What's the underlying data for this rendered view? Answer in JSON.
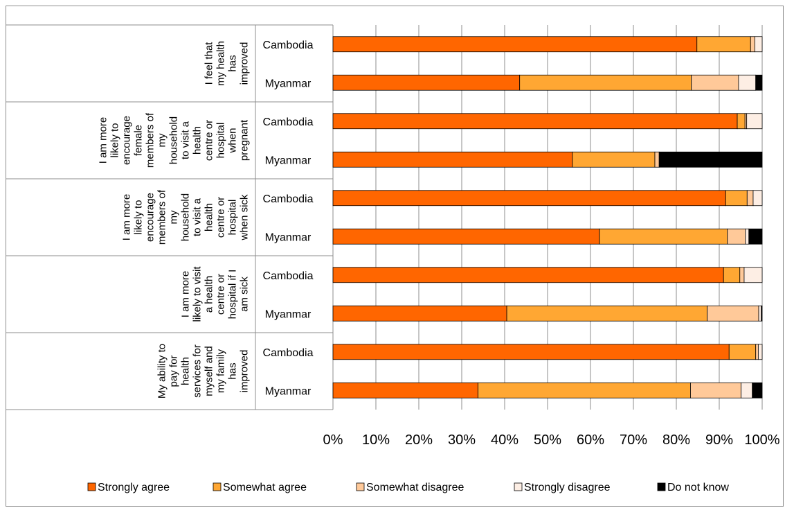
{
  "chart_data": {
    "type": "bar",
    "orientation": "horizontal",
    "stacked": "100%",
    "groups": [
      {
        "label_lines": [
          "I feel that",
          "my health",
          "has",
          "improved"
        ],
        "rows": [
          {
            "country": "Cambodia",
            "values": [
              84.8,
              12.5,
              1.0,
              1.7,
              0.0
            ]
          },
          {
            "country": "Myanmar",
            "values": [
              43.5,
              40.0,
              11.0,
              4.0,
              1.5
            ]
          }
        ]
      },
      {
        "label_lines": [
          "I am more",
          "likely to",
          "encourage",
          "female",
          "members of",
          "my",
          "household",
          "to visit a",
          "health",
          "centre or",
          "hospital",
          "when",
          "pregnant"
        ],
        "rows": [
          {
            "country": "Cambodia",
            "values": [
              94.2,
              1.8,
              0.4,
              3.6,
              0.0
            ]
          },
          {
            "country": "Myanmar",
            "values": [
              55.8,
              19.2,
              1.0,
              0.0,
              24.0
            ]
          }
        ]
      },
      {
        "label_lines": [
          "I am more",
          "likely to",
          "encourage",
          "members of",
          "my",
          "household",
          "to visit a",
          "health",
          "centre or",
          "hospital",
          "when sick"
        ],
        "rows": [
          {
            "country": "Cambodia",
            "values": [
              91.5,
              5.0,
              1.4,
              2.1,
              0.0
            ]
          },
          {
            "country": "Myanmar",
            "values": [
              62.1,
              29.8,
              4.2,
              0.8,
              3.1
            ]
          }
        ]
      },
      {
        "label_lines": [
          "I am more",
          "likely to visit",
          "a health",
          "centre or",
          "hospital if I",
          "am sick"
        ],
        "rows": [
          {
            "country": "Cambodia",
            "values": [
              91.0,
              3.8,
              1.0,
              4.2,
              0.0
            ]
          },
          {
            "country": "Myanmar",
            "values": [
              40.5,
              46.7,
              12.0,
              0.6,
              0.2
            ]
          }
        ]
      },
      {
        "label_lines": [
          "My ability to",
          "pay for",
          "health",
          "services for",
          "myself and",
          "my family",
          "has",
          "improved"
        ],
        "rows": [
          {
            "country": "Cambodia",
            "values": [
              92.3,
              6.2,
              0.6,
              0.9,
              0.0
            ]
          },
          {
            "country": "Myanmar",
            "values": [
              33.8,
              49.5,
              11.8,
              2.6,
              2.3
            ]
          }
        ]
      }
    ],
    "series": [
      {
        "name": "Strongly agree",
        "color": "#FF6600"
      },
      {
        "name": "Somewhat agree",
        "color": "#FFA733"
      },
      {
        "name": "Somewhat disagree",
        "color": "#FFC999"
      },
      {
        "name": "Strongly disagree",
        "color": "#FDEEE4"
      },
      {
        "name": "Do not know",
        "color": "#000000"
      }
    ],
    "xlim": [
      0,
      100
    ],
    "x_ticks": [
      "0%",
      "10%",
      "20%",
      "30%",
      "40%",
      "50%",
      "60%",
      "70%",
      "80%",
      "90%",
      "100%"
    ],
    "grid": true,
    "legend_position": "bottom"
  }
}
